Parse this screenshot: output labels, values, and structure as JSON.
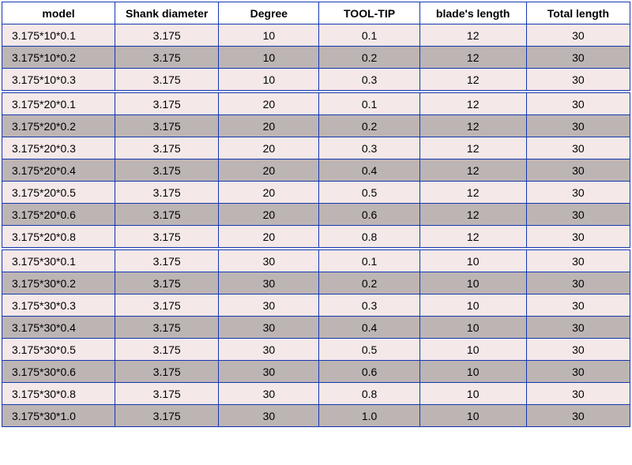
{
  "columns": [
    "model",
    "Shank diameter",
    "Degree",
    "TOOL-TIP",
    "blade's length",
    "Total length"
  ],
  "sections": [
    {
      "rows": [
        {
          "model": "3.175*10*0.1",
          "shank": "3.175",
          "degree": "10",
          "tip": "0.1",
          "blade": "12",
          "total": "30",
          "shade": "light"
        },
        {
          "model": "3.175*10*0.2",
          "shank": "3.175",
          "degree": "10",
          "tip": "0.2",
          "blade": "12",
          "total": "30",
          "shade": "dark"
        },
        {
          "model": "3.175*10*0.3",
          "shank": "3.175",
          "degree": "10",
          "tip": "0.3",
          "blade": "12",
          "total": "30",
          "shade": "light"
        }
      ]
    },
    {
      "rows": [
        {
          "model": "3.175*20*0.1",
          "shank": "3.175",
          "degree": "20",
          "tip": "0.1",
          "blade": "12",
          "total": "30",
          "shade": "light"
        },
        {
          "model": "3.175*20*0.2",
          "shank": "3.175",
          "degree": "20",
          "tip": "0.2",
          "blade": "12",
          "total": "30",
          "shade": "dark"
        },
        {
          "model": "3.175*20*0.3",
          "shank": "3.175",
          "degree": "20",
          "tip": "0.3",
          "blade": "12",
          "total": "30",
          "shade": "light"
        },
        {
          "model": "3.175*20*0.4",
          "shank": "3.175",
          "degree": "20",
          "tip": "0.4",
          "blade": "12",
          "total": "30",
          "shade": "dark"
        },
        {
          "model": "3.175*20*0.5",
          "shank": "3.175",
          "degree": "20",
          "tip": "0.5",
          "blade": "12",
          "total": "30",
          "shade": "light"
        },
        {
          "model": "3.175*20*0.6",
          "shank": "3.175",
          "degree": "20",
          "tip": "0.6",
          "blade": "12",
          "total": "30",
          "shade": "dark"
        },
        {
          "model": "3.175*20*0.8",
          "shank": "3.175",
          "degree": "20",
          "tip": "0.8",
          "blade": "12",
          "total": "30",
          "shade": "light"
        }
      ]
    },
    {
      "rows": [
        {
          "model": "3.175*30*0.1",
          "shank": "3.175",
          "degree": "30",
          "tip": "0.1",
          "blade": "10",
          "total": "30",
          "shade": "light"
        },
        {
          "model": "3.175*30*0.2",
          "shank": "3.175",
          "degree": "30",
          "tip": "0.2",
          "blade": "10",
          "total": "30",
          "shade": "dark"
        },
        {
          "model": "3.175*30*0.3",
          "shank": "3.175",
          "degree": "30",
          "tip": "0.3",
          "blade": "10",
          "total": "30",
          "shade": "light"
        },
        {
          "model": "3.175*30*0.4",
          "shank": "3.175",
          "degree": "30",
          "tip": "0.4",
          "blade": "10",
          "total": "30",
          "shade": "dark"
        },
        {
          "model": "3.175*30*0.5",
          "shank": "3.175",
          "degree": "30",
          "tip": "0.5",
          "blade": "10",
          "total": "30",
          "shade": "light"
        },
        {
          "model": "3.175*30*0.6",
          "shank": "3.175",
          "degree": "30",
          "tip": "0.6",
          "blade": "10",
          "total": "30",
          "shade": "dark"
        },
        {
          "model": "3.175*30*0.8",
          "shank": "3.175",
          "degree": "30",
          "tip": "0.8",
          "blade": "10",
          "total": "30",
          "shade": "light"
        },
        {
          "model": "3.175*30*1.0",
          "shank": "3.175",
          "degree": "30",
          "tip": "1.0",
          "blade": "10",
          "total": "30",
          "shade": "dark"
        }
      ]
    }
  ],
  "style": {
    "border_color": "#1438b0",
    "light_bg": "#f4e8e8",
    "dark_bg": "#bdb4b4",
    "header_bg": "#ffffff",
    "text_color": "#000000",
    "font_size": 14
  }
}
